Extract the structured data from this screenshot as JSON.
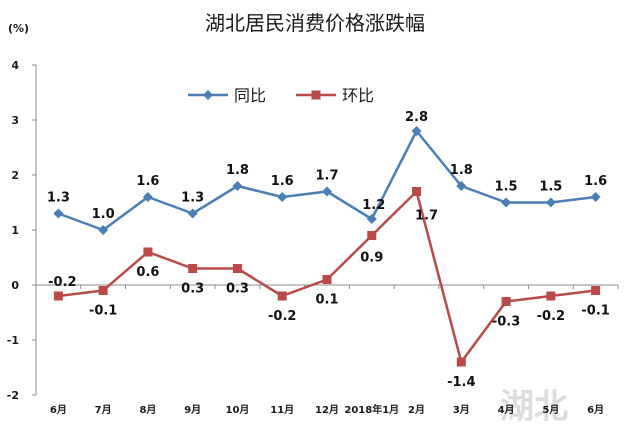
{
  "chart_data": {
    "type": "line",
    "title": "湖北居民消费价格涨跌幅",
    "unit_label": "(%)",
    "categories": [
      "6月",
      "7月",
      "8月",
      "9月",
      "10月",
      "11月",
      "12月",
      "2018年1月",
      "2月",
      "3月",
      "4月",
      "5月",
      "6月"
    ],
    "ylim": [
      -2,
      4
    ],
    "yticks": [
      "4",
      "3",
      "2",
      "1",
      "0",
      "-1",
      "-2"
    ],
    "grid": false,
    "legend_position": "top-left",
    "series": [
      {
        "name": "同比",
        "color": "#4a7eb5",
        "marker": "diamond",
        "values": [
          1.3,
          1.0,
          1.6,
          1.3,
          1.8,
          1.6,
          1.7,
          1.2,
          2.8,
          1.8,
          1.5,
          1.5,
          1.6
        ],
        "labels": [
          "1.3",
          "1.0",
          "1.6",
          "1.3",
          "1.8",
          "1.6",
          "1.7",
          "1.2",
          "2.8",
          "1.8",
          "1.5",
          "1.5",
          "1.6"
        ]
      },
      {
        "name": "环比",
        "color": "#b94a48",
        "marker": "square",
        "values": [
          -0.2,
          -0.1,
          0.6,
          0.3,
          0.3,
          -0.2,
          0.1,
          0.9,
          1.7,
          -1.4,
          -0.3,
          -0.2,
          -0.1
        ],
        "labels": [
          "-0.2",
          "-0.1",
          "0.6",
          "0.3",
          "0.3",
          "-0.2",
          "0.1",
          "0.9",
          "1.7",
          "-1.4",
          "-0.3",
          "-0.2",
          "-0.1"
        ]
      }
    ],
    "watermark": "湖北"
  }
}
